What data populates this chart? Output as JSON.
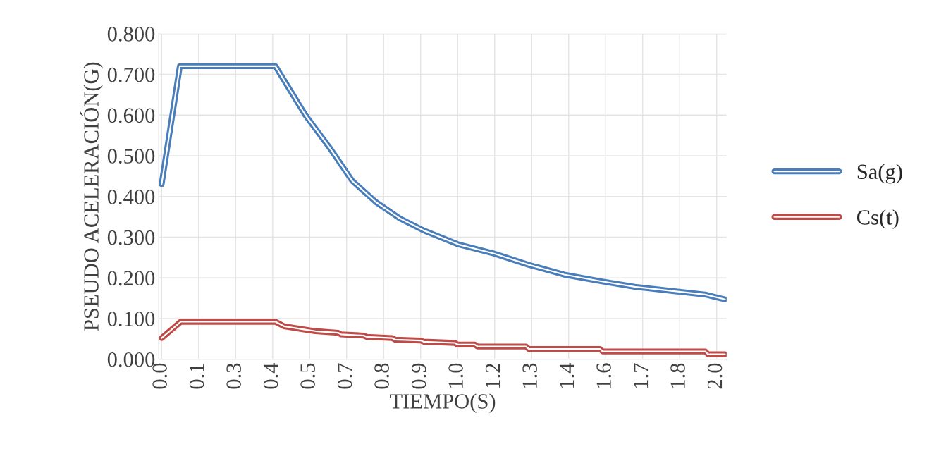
{
  "chart_data": {
    "type": "line",
    "xlabel": "TIEMPO(S)",
    "ylabel": "PSEUDO ACELERACIÓN(G)",
    "xlim": [
      -0.01,
      1.985
    ],
    "ylim": [
      0,
      0.8
    ],
    "xticks": [
      {
        "value": 0,
        "label": "0.0"
      },
      {
        "value": 0.13,
        "label": "0.1"
      },
      {
        "value": 0.26,
        "label": "0.3"
      },
      {
        "value": 0.39,
        "label": "0.4"
      },
      {
        "value": 0.52,
        "label": "0.5"
      },
      {
        "value": 0.65,
        "label": "0.7"
      },
      {
        "value": 0.78,
        "label": "0.8"
      },
      {
        "value": 0.91,
        "label": "0.9"
      },
      {
        "value": 1.04,
        "label": "1.0"
      },
      {
        "value": 1.17,
        "label": "1.2"
      },
      {
        "value": 1.3,
        "label": "1.3"
      },
      {
        "value": 1.43,
        "label": "1.4"
      },
      {
        "value": 1.56,
        "label": "1.6"
      },
      {
        "value": 1.69,
        "label": "1.7"
      },
      {
        "value": 1.82,
        "label": "1.8"
      },
      {
        "value": 1.95,
        "label": "2.0"
      }
    ],
    "yticks": [
      {
        "value": 0,
        "label": "0.000"
      },
      {
        "value": 0.1,
        "label": "0.100"
      },
      {
        "value": 0.2,
        "label": "0.200"
      },
      {
        "value": 0.3,
        "label": "0.300"
      },
      {
        "value": 0.4,
        "label": "0.400"
      },
      {
        "value": 0.5,
        "label": "0.500"
      },
      {
        "value": 0.6,
        "label": "0.600"
      },
      {
        "value": 0.7,
        "label": "0.700"
      },
      {
        "value": 0.8,
        "label": "0.800"
      }
    ],
    "grid": true,
    "legend": "right",
    "marker": "none",
    "line_style": "solid",
    "series": [
      {
        "name": "Sa(g)",
        "color": "#4a7ebb",
        "x": [
          0,
          0.064,
          0.4,
          0.505,
          0.59,
          0.67,
          0.753,
          0.837,
          0.919,
          1.043,
          1.166,
          1.29,
          1.414,
          1.54,
          1.662,
          1.79,
          1.909,
          1.979
        ],
        "values": [
          0.43,
          0.72,
          0.72,
          0.6,
          0.52,
          0.438,
          0.386,
          0.346,
          0.317,
          0.282,
          0.26,
          0.232,
          0.208,
          0.192,
          0.178,
          0.168,
          0.159,
          0.147
        ]
      },
      {
        "name": "Cs(t)",
        "color": "#be4b48",
        "x": [
          0,
          0.067,
          0.4,
          0.43,
          0.5,
          0.54,
          0.62,
          0.63,
          0.71,
          0.72,
          0.81,
          0.82,
          0.91,
          0.92,
          1.03,
          1.04,
          1.1,
          1.11,
          1.28,
          1.29,
          1.54,
          1.55,
          1.91,
          1.92,
          1.979
        ],
        "values": [
          0.052,
          0.092,
          0.092,
          0.081,
          0.073,
          0.069,
          0.065,
          0.061,
          0.058,
          0.055,
          0.052,
          0.048,
          0.046,
          0.043,
          0.04,
          0.036,
          0.036,
          0.031,
          0.031,
          0.025,
          0.025,
          0.019,
          0.019,
          0.012,
          0.012
        ]
      }
    ]
  }
}
